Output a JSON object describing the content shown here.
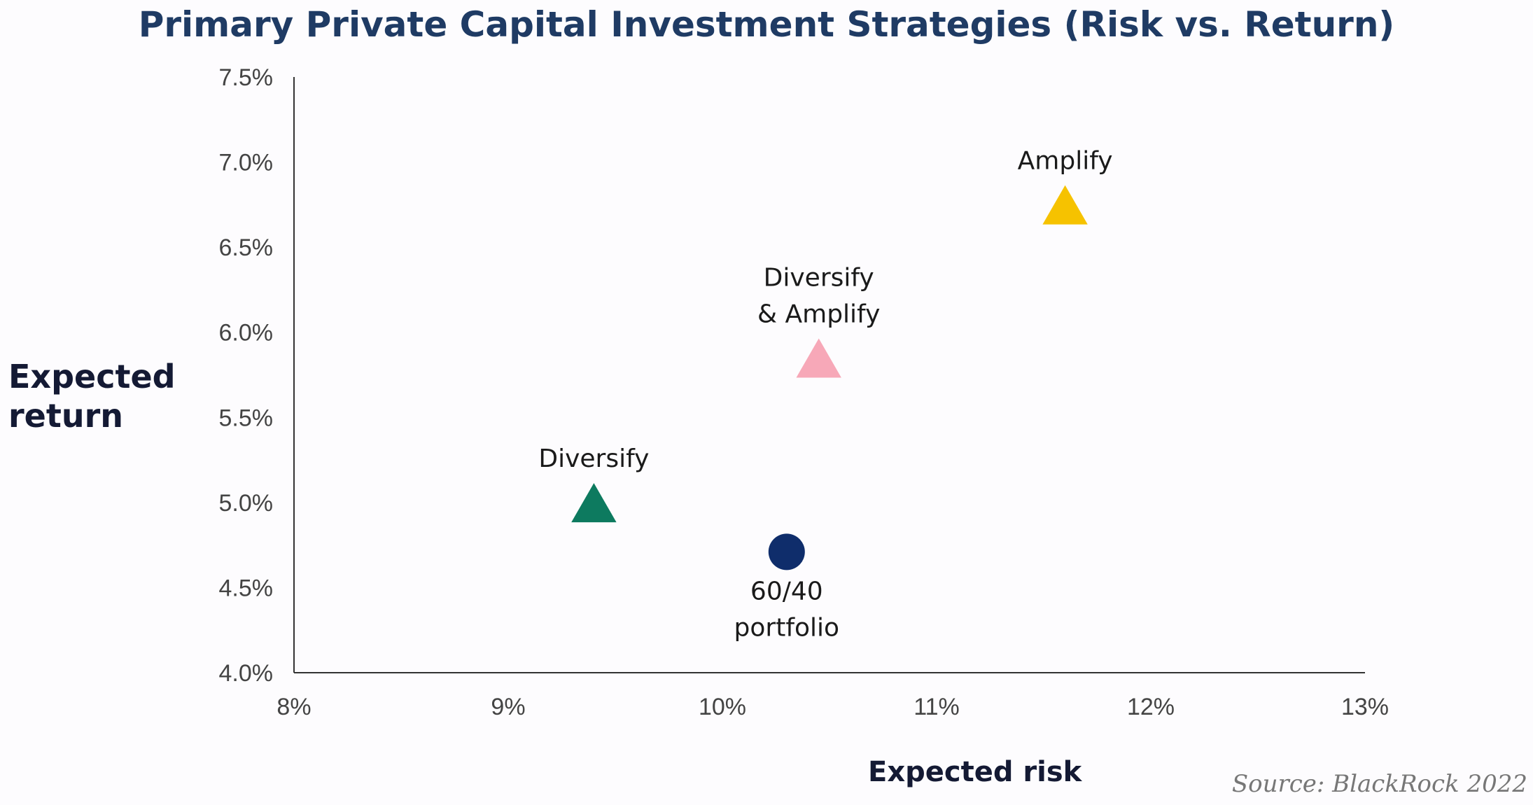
{
  "chart_data": {
    "type": "scatter",
    "title": "Primary Private Capital Investment Strategies (Risk vs. Return)",
    "xlabel": "Expected risk",
    "ylabel": "Expected return",
    "xlim": [
      8,
      13
    ],
    "ylim": [
      4.0,
      7.5
    ],
    "xticks": [
      {
        "value": 8,
        "label": "8%"
      },
      {
        "value": 9,
        "label": "9%"
      },
      {
        "value": 10,
        "label": "10%"
      },
      {
        "value": 11,
        "label": "11%"
      },
      {
        "value": 12,
        "label": "12%"
      },
      {
        "value": 13,
        "label": "13%"
      }
    ],
    "yticks": [
      {
        "value": 4.0,
        "label": "4.0%"
      },
      {
        "value": 4.5,
        "label": "4.5%"
      },
      {
        "value": 5.0,
        "label": "5.0%"
      },
      {
        "value": 5.5,
        "label": "5.5%"
      },
      {
        "value": 6.0,
        "label": "6.0%"
      },
      {
        "value": 6.5,
        "label": "6.5%"
      },
      {
        "value": 7.0,
        "label": "7.0%"
      },
      {
        "value": 7.5,
        "label": "7.5%"
      }
    ],
    "points": [
      {
        "name": "amplify",
        "label_lines": [
          "Amplify"
        ],
        "x": 11.6,
        "y": 6.72,
        "marker": "triangle",
        "color": "#f6c200"
      },
      {
        "name": "diversify-amplify",
        "label_lines": [
          "Diversify",
          "& Amplify"
        ],
        "x": 10.45,
        "y": 5.82,
        "marker": "triangle",
        "color": "#f7a8b8"
      },
      {
        "name": "diversify",
        "label_lines": [
          "Diversify"
        ],
        "x": 9.4,
        "y": 4.97,
        "marker": "triangle",
        "color": "#0d7a5f"
      },
      {
        "name": "portfolio-60-40",
        "label_lines": [
          "60/40",
          "portfolio"
        ],
        "x": 10.3,
        "y": 4.71,
        "marker": "circle",
        "color": "#0f2d6b"
      }
    ]
  },
  "source": "Source: BlackRock 2022"
}
